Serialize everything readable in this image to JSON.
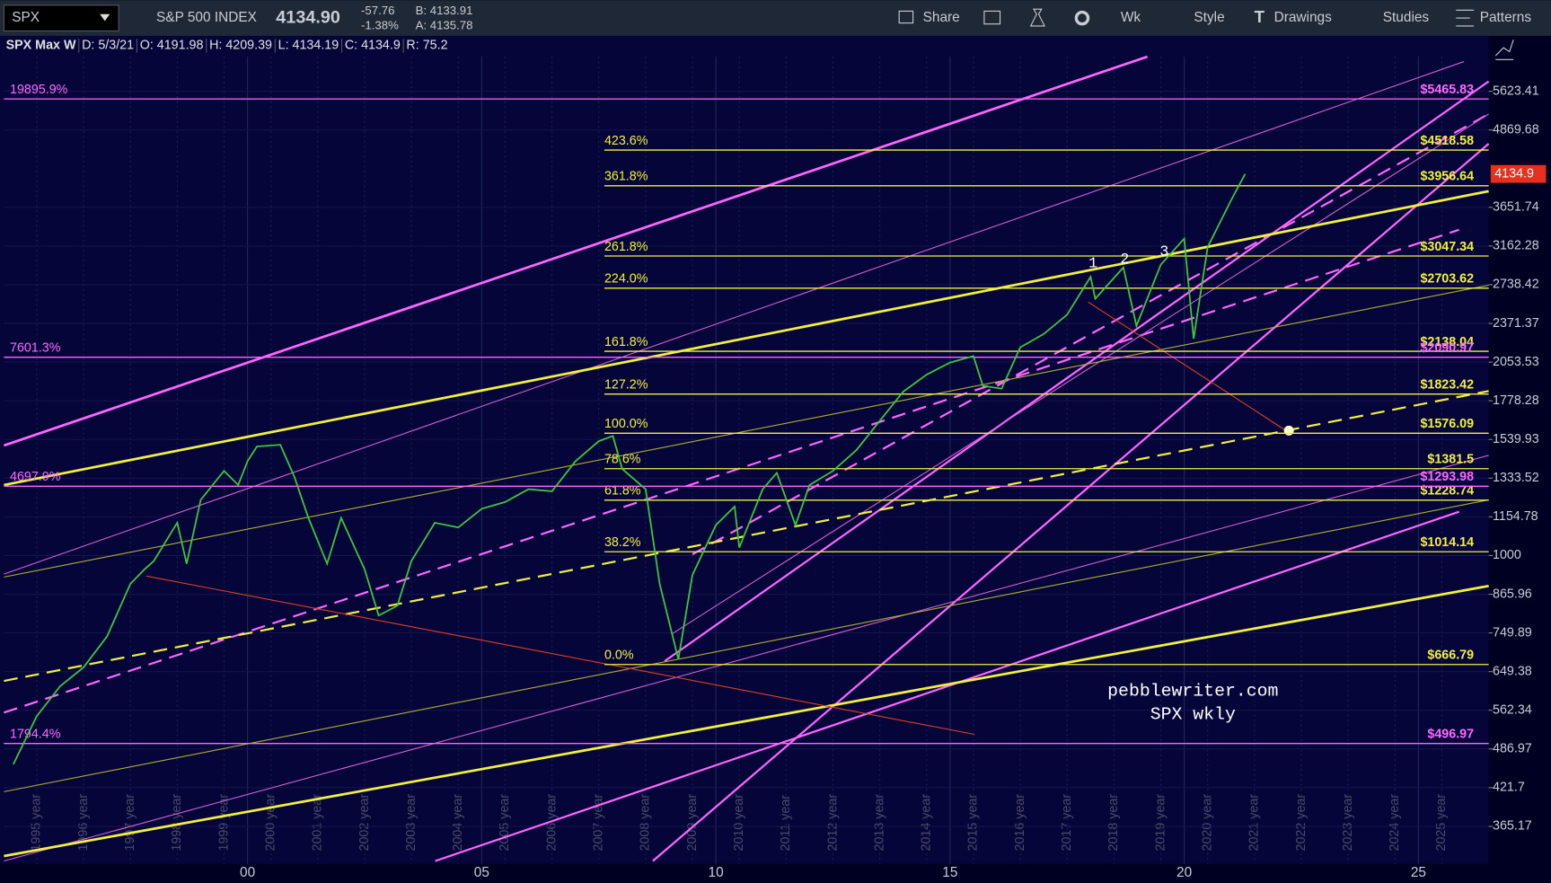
{
  "toolbar": {
    "symbol": "SPX",
    "name": "S&P 500 INDEX",
    "last": "4134.90",
    "change": "-57.76",
    "change_pct": "-1.38%",
    "bid": "B: 4133.91",
    "ask": "A: 4135.78",
    "buttons": [
      "Share",
      "Wk",
      "Style",
      "Drawings",
      "Studies",
      "Patterns"
    ]
  },
  "chart_data": {
    "type": "line",
    "header": [
      "SPX Max W",
      "D: 5/3/21",
      "O: 4191.98",
      "H: 4209.39",
      "L: 4134.19",
      "C: 4134.9",
      "R: 75.2"
    ],
    "log_scale": true,
    "xlim": [
      1994.8,
      2026.5
    ],
    "xticks": [
      {
        "value": 2000,
        "label": "00"
      },
      {
        "value": 2005,
        "label": "05"
      },
      {
        "value": 2010,
        "label": "10"
      },
      {
        "value": 2015,
        "label": "15"
      },
      {
        "value": 2020,
        "label": "20"
      },
      {
        "value": 2025,
        "label": "25"
      }
    ],
    "ylim": [
      317.5,
      6397
    ],
    "yticks": [
      5623.41,
      4869.68,
      3651.74,
      3162.28,
      2738.42,
      2371.37,
      2053.53,
      1778.28,
      1539.93,
      1333.52,
      1154.78,
      1000,
      865.96,
      749.89,
      649.38,
      562.34,
      486.97,
      421.7,
      365.17
    ],
    "year_labels": [
      "1995 year",
      "1996 year",
      "1997 year",
      "1998 year",
      "1999 year",
      "2000 year",
      "2001 year",
      "2002 year",
      "2003 year",
      "2004 year",
      "2005 year",
      "2006 year",
      "2007 year",
      "2008 year",
      "2009 year",
      "2010 year",
      "2011 year",
      "2012 year",
      "2013 year",
      "2014 year",
      "2015 year",
      "2016 year",
      "2017 year",
      "2018 year",
      "2019 year",
      "2020 year",
      "2021 year",
      "2022 year",
      "2023 year",
      "2024 year",
      "2025 year"
    ],
    "series": [
      {
        "name": "SPX",
        "color": "#3cc83c",
        "x": [
          1995.0,
          1995.5,
          1996.0,
          1996.5,
          1997.0,
          1997.5,
          1997.8,
          1998.0,
          1998.5,
          1998.7,
          1999.0,
          1999.5,
          1999.8,
          2000.0,
          2000.2,
          2000.7,
          2001.0,
          2001.3,
          2001.7,
          2002.0,
          2002.5,
          2002.8,
          2003.2,
          2003.5,
          2004.0,
          2004.5,
          2005.0,
          2005.5,
          2006.0,
          2006.5,
          2007.0,
          2007.5,
          2007.8,
          2008.0,
          2008.5,
          2008.8,
          2009.2,
          2009.5,
          2010.0,
          2010.4,
          2010.5,
          2011.0,
          2011.3,
          2011.7,
          2012.0,
          2012.5,
          2013.0,
          2013.5,
          2014.0,
          2014.5,
          2015.0,
          2015.5,
          2015.7,
          2016.1,
          2016.5,
          2017.0,
          2017.5,
          2018.0,
          2018.1,
          2018.7,
          2018.98,
          2019.5,
          2020.0,
          2020.2,
          2020.5,
          2021.0,
          2021.3
        ],
        "values": [
          460,
          550,
          615,
          660,
          740,
          900,
          950,
          980,
          1130,
          970,
          1230,
          1370,
          1300,
          1420,
          1500,
          1510,
          1340,
          1150,
          970,
          1150,
          950,
          800,
          830,
          980,
          1130,
          1110,
          1190,
          1220,
          1280,
          1270,
          1420,
          1530,
          1560,
          1380,
          1280,
          900,
          680,
          930,
          1120,
          1200,
          1030,
          1280,
          1360,
          1120,
          1300,
          1370,
          1480,
          1650,
          1840,
          1960,
          2050,
          2100,
          1880,
          1860,
          2170,
          2280,
          2450,
          2820,
          2600,
          2920,
          2350,
          2950,
          3250,
          2240,
          3150,
          3750,
          4134.9
        ]
      }
    ],
    "last_price": 4134.9,
    "fib_levels": [
      {
        "label": "423.6%",
        "price": 4518.58,
        "price_label": "$4518.58"
      },
      {
        "label": "361.8%",
        "price": 3956.64,
        "price_label": "$3956.64"
      },
      {
        "label": "261.8%",
        "price": 3047.34,
        "price_label": "$3047.34"
      },
      {
        "label": "224.0%",
        "price": 2703.62,
        "price_label": "$2703.62"
      },
      {
        "label": "161.8%",
        "price": 2138.04,
        "price_label": "$2138.04"
      },
      {
        "label": "127.2%",
        "price": 1823.42,
        "price_label": "$1823.42"
      },
      {
        "label": "100.0%",
        "price": 1576.09,
        "price_label": "$1576.09"
      },
      {
        "label": "78.6%",
        "price": 1381.5,
        "price_label": "$1381.5"
      },
      {
        "label": "61.8%",
        "price": 1228.74,
        "price_label": "$1228.74"
      },
      {
        "label": "38.2%",
        "price": 1014.14,
        "price_label": "$1014.14"
      },
      {
        "label": "0.0%",
        "price": 666.79,
        "price_label": "$666.79"
      }
    ],
    "pct_levels": [
      {
        "label": "19895.9%",
        "price": 5465.83,
        "price_label": "$5465.83"
      },
      {
        "label": "7601.3%",
        "price": 2090.97,
        "price_label": "$2090.97"
      },
      {
        "label": "4697.9%",
        "price": 1293.98,
        "price_label": "$1293.98"
      },
      {
        "label": "1794.4%",
        "price": 496.97,
        "price_label": "$496.97"
      }
    ],
    "annotations": [
      "pebblewriter.com",
      "SPX wkly",
      "1",
      "2",
      "3"
    ]
  }
}
